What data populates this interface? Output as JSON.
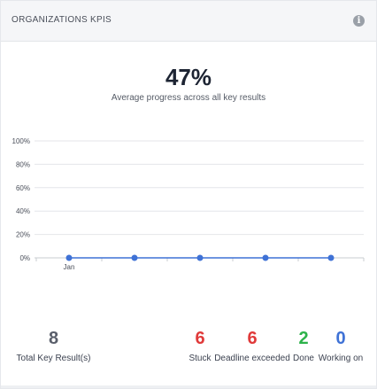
{
  "header": {
    "title": "ORGANIZATIONS KPIS",
    "info_icon": "info-icon",
    "info_glyph": "i"
  },
  "summary": {
    "average_progress": "47%",
    "average_progress_label": "Average progress across all key results"
  },
  "chart_data": {
    "type": "line",
    "x": [
      "Jan",
      "",
      "",
      "",
      ""
    ],
    "series": [
      {
        "values": [
          0,
          0,
          0,
          0,
          0
        ]
      }
    ],
    "yticks": [
      "100%",
      "80%",
      "60%",
      "40%",
      "20%",
      "0%"
    ],
    "ylim": [
      0,
      100
    ],
    "grid": true,
    "color": "#3f72d6"
  },
  "stats": [
    {
      "key": "total",
      "value": "8",
      "label": "Total Key Result(s)",
      "color": "#5a5f6b"
    },
    {
      "key": "stuck",
      "value": "6",
      "label": "Stuck",
      "color": "#e03a3a"
    },
    {
      "key": "deadline",
      "value": "6",
      "label": "Deadline exceeded",
      "color": "#e03a3a"
    },
    {
      "key": "done",
      "value": "2",
      "label": "Done",
      "color": "#2db24a"
    },
    {
      "key": "working",
      "value": "0",
      "label": "Working on",
      "color": "#3f72d6"
    }
  ]
}
